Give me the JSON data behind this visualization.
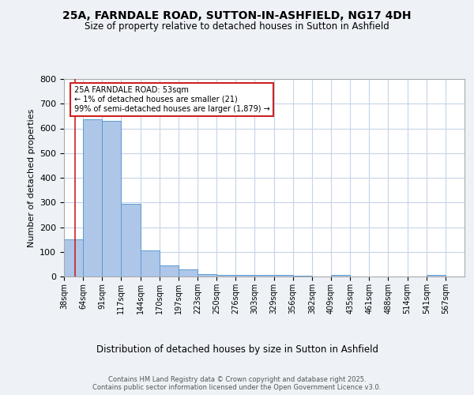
{
  "title_line1": "25A, FARNDALE ROAD, SUTTON-IN-ASHFIELD, NG17 4DH",
  "title_line2": "Size of property relative to detached houses in Sutton in Ashfield",
  "xlabel": "Distribution of detached houses by size in Sutton in Ashfield",
  "ylabel": "Number of detached properties",
  "categories": [
    "38sqm",
    "64sqm",
    "91sqm",
    "117sqm",
    "144sqm",
    "170sqm",
    "197sqm",
    "223sqm",
    "250sqm",
    "276sqm",
    "303sqm",
    "329sqm",
    "356sqm",
    "382sqm",
    "409sqm",
    "435sqm",
    "461sqm",
    "488sqm",
    "514sqm",
    "541sqm",
    "567sqm"
  ],
  "values": [
    150,
    638,
    630,
    293,
    105,
    45,
    30,
    10,
    8,
    5,
    6,
    6,
    2,
    0,
    5,
    0,
    0,
    0,
    0,
    6,
    0
  ],
  "bar_color": "#aec6e8",
  "bar_edge_color": "#5b9bd5",
  "annotation_text": "25A FARNDALE ROAD: 53sqm\n← 1% of detached houses are smaller (21)\n99% of semi-detached houses are larger (1,879) →",
  "vline_color": "#cc2222",
  "annotation_box_edge_color": "#cc2222",
  "ylim": [
    0,
    800
  ],
  "yticks": [
    0,
    100,
    200,
    300,
    400,
    500,
    600,
    700,
    800
  ],
  "footer_text": "Contains HM Land Registry data © Crown copyright and database right 2025.\nContains public sector information licensed under the Open Government Licence v3.0.",
  "bg_color": "#eef2f7",
  "plot_bg_color": "#ffffff",
  "grid_color": "#c5d5e8"
}
